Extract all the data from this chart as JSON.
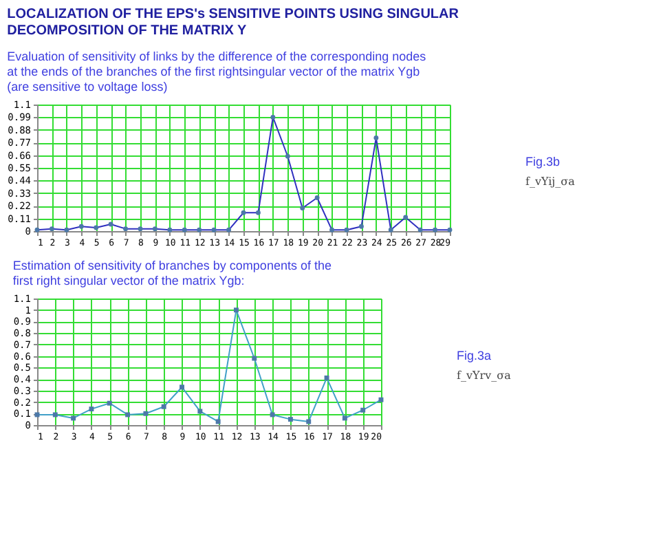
{
  "chart_data": [
    {
      "type": "line",
      "title": "LOCALIZATION OF THE EPS's SENSITIVE POINTS USING SINGULAR DECOMPOSITION OF THE MATRIX Y",
      "subtitle": "Evaluation of sensitivity of links by the difference of the corresponding nodes at the ends of the branches of the first rightsingular vector of the matrix Ygb (are sensitive to voltage loss)",
      "x": [
        1,
        2,
        3,
        4,
        5,
        6,
        7,
        8,
        9,
        10,
        11,
        12,
        13,
        14,
        15,
        16,
        17,
        18,
        19,
        20,
        21,
        22,
        23,
        24,
        25,
        26,
        27,
        28,
        29
      ],
      "series": [
        {
          "color": "#3030c0",
          "values": [
            0.01,
            0.02,
            0.01,
            0.04,
            0.03,
            0.06,
            0.02,
            0.02,
            0.02,
            0.01,
            0.01,
            0.01,
            0.01,
            0.01,
            0.16,
            0.16,
            0.99,
            0.65,
            0.2,
            0.29,
            0.01,
            0.01,
            0.04,
            0.81,
            0.01,
            0.12,
            0.01,
            0.01,
            0.01
          ]
        }
      ],
      "xlim": [
        1,
        29
      ],
      "xticks": [
        1,
        2,
        3,
        4,
        5,
        6,
        7,
        8,
        9,
        10,
        11,
        12,
        13,
        14,
        15,
        16,
        17,
        18,
        19,
        20,
        21,
        22,
        23,
        24,
        25,
        26,
        27,
        28,
        29
      ],
      "ylim": [
        0,
        1.1
      ],
      "yticks": [
        0,
        0.11,
        0.22,
        0.33,
        0.44,
        0.55,
        0.66,
        0.77,
        0.88,
        0.99,
        1.1
      ],
      "grid": true,
      "marker": "circle",
      "line_style": "solid",
      "annotations": [
        "Fig.3b",
        "f_vYij_σa"
      ]
    },
    {
      "type": "line",
      "title": "Estimation of sensitivity of branches by components of the first right singular vector of the matrix Ygb:",
      "x": [
        1,
        2,
        3,
        4,
        5,
        6,
        7,
        8,
        9,
        10,
        11,
        12,
        13,
        14,
        15,
        16,
        17,
        18,
        19,
        20
      ],
      "series": [
        {
          "color": "#40a0c8",
          "values": [
            0.09,
            0.09,
            0.06,
            0.14,
            0.19,
            0.09,
            0.1,
            0.16,
            0.33,
            0.12,
            0.03,
            1.0,
            0.58,
            0.09,
            0.05,
            0.03,
            0.41,
            0.06,
            0.13,
            0.22
          ]
        }
      ],
      "xlim": [
        1,
        20
      ],
      "xticks": [
        1,
        2,
        3,
        4,
        5,
        6,
        7,
        8,
        9,
        10,
        11,
        12,
        13,
        14,
        15,
        16,
        17,
        18,
        19,
        20
      ],
      "ylim": [
        0,
        1.1
      ],
      "yticks": [
        0,
        0.1,
        0.2,
        0.3,
        0.4,
        0.5,
        0.6,
        0.7,
        0.8,
        0.9,
        1,
        1.1
      ],
      "grid": true,
      "marker": "square",
      "line_style": "solid",
      "annotations": [
        "Fig.3a",
        "f_vYrv_σa"
      ]
    }
  ]
}
